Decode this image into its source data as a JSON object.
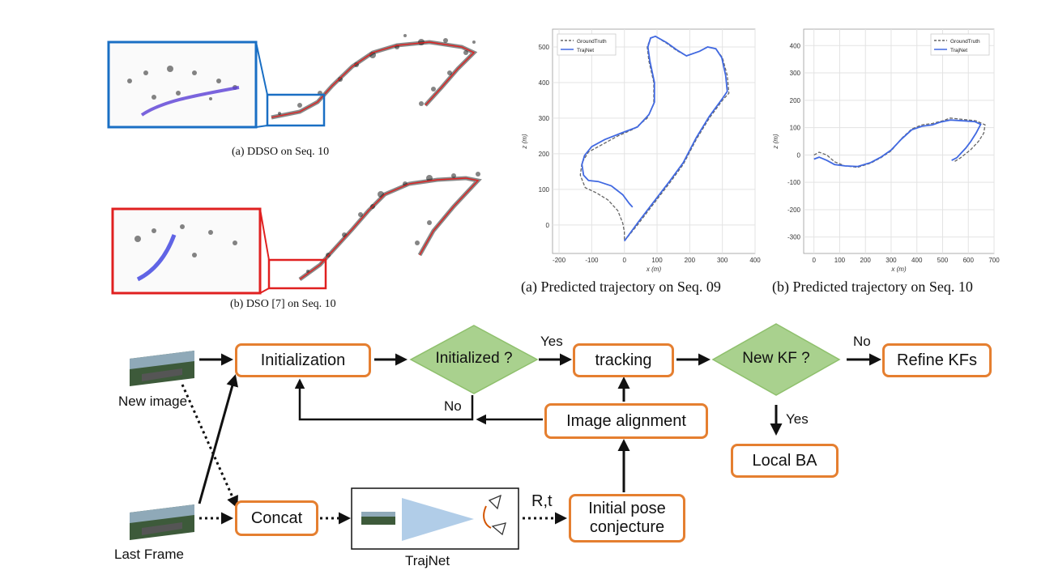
{
  "captions": {
    "ddso": "(a)  DDSO on Seq. 10",
    "dso": "(b)  DSO [7] on Seq. 10",
    "traj09": "(a)  Predicted trajectory on Seq. 09",
    "traj10": "(b)  Predicted trajectory on Seq. 10"
  },
  "chart_data": [
    {
      "type": "line",
      "xlabel": "x (m)",
      "ylabel": "z (m)",
      "xlim": [
        -220,
        400
      ],
      "ylim": [
        -80,
        550
      ],
      "xticks": [
        -200,
        -100,
        0,
        100,
        200,
        300,
        400
      ],
      "yticks": [
        0,
        100,
        200,
        300,
        400,
        500
      ],
      "grid": true,
      "legend": "top-left",
      "series": [
        {
          "name": "GroundTruth",
          "color": "#666666",
          "style": "dashed",
          "points": [
            [
              0,
              -45
            ],
            [
              40,
              0
            ],
            [
              90,
              60
            ],
            [
              140,
              120
            ],
            [
              180,
              170
            ],
            [
              220,
              240
            ],
            [
              260,
              300
            ],
            [
              300,
              350
            ],
            [
              320,
              370
            ],
            [
              315,
              420
            ],
            [
              300,
              470
            ],
            [
              280,
              495
            ],
            [
              255,
              500
            ],
            [
              230,
              488
            ],
            [
              190,
              475
            ],
            [
              160,
              490
            ],
            [
              130,
              510
            ],
            [
              95,
              530
            ],
            [
              80,
              525
            ],
            [
              70,
              500
            ],
            [
              75,
              460
            ],
            [
              90,
              400
            ],
            [
              90,
              340
            ],
            [
              70,
              300
            ],
            [
              30,
              270
            ],
            [
              -20,
              250
            ],
            [
              -70,
              225
            ],
            [
              -110,
              205
            ],
            [
              -130,
              175
            ],
            [
              -135,
              140
            ],
            [
              -120,
              105
            ],
            [
              -85,
              90
            ],
            [
              -50,
              70
            ],
            [
              -20,
              40
            ],
            [
              -5,
              5
            ],
            [
              0,
              -20
            ],
            [
              0,
              -45
            ]
          ]
        },
        {
          "name": "TrajNet",
          "color": "#4169e1",
          "style": "solid",
          "points": [
            [
              0,
              -45
            ],
            [
              40,
              5
            ],
            [
              90,
              65
            ],
            [
              140,
              125
            ],
            [
              180,
              175
            ],
            [
              220,
              245
            ],
            [
              260,
              305
            ],
            [
              300,
              355
            ],
            [
              315,
              375
            ],
            [
              310,
              420
            ],
            [
              298,
              470
            ],
            [
              280,
              495
            ],
            [
              255,
              500
            ],
            [
              230,
              488
            ],
            [
              190,
              475
            ],
            [
              160,
              492
            ],
            [
              130,
              512
            ],
            [
              95,
              530
            ],
            [
              80,
              525
            ],
            [
              72,
              500
            ],
            [
              78,
              460
            ],
            [
              92,
              400
            ],
            [
              92,
              345
            ],
            [
              75,
              310
            ],
            [
              40,
              275
            ],
            [
              -10,
              258
            ],
            [
              -60,
              240
            ],
            [
              -100,
              220
            ],
            [
              -122,
              195
            ],
            [
              -130,
              170
            ],
            [
              -125,
              140
            ],
            [
              -110,
              125
            ],
            [
              -80,
              122
            ],
            [
              -40,
              110
            ],
            [
              -5,
              85
            ],
            [
              15,
              60
            ],
            [
              25,
              50
            ]
          ]
        }
      ]
    },
    {
      "type": "line",
      "xlabel": "x (m)",
      "ylabel": "z (m)",
      "xlim": [
        -40,
        700
      ],
      "ylim": [
        -360,
        460
      ],
      "xticks": [
        0,
        100,
        200,
        300,
        400,
        500,
        600,
        700
      ],
      "yticks": [
        -300,
        -200,
        -100,
        0,
        100,
        200,
        300,
        400
      ],
      "grid": true,
      "legend": "top-right",
      "series": [
        {
          "name": "GroundTruth",
          "color": "#666666",
          "style": "dashed",
          "points": [
            [
              0,
              0
            ],
            [
              20,
              10
            ],
            [
              50,
              0
            ],
            [
              80,
              -25
            ],
            [
              120,
              -40
            ],
            [
              170,
              -45
            ],
            [
              220,
              -30
            ],
            [
              260,
              -10
            ],
            [
              300,
              15
            ],
            [
              340,
              60
            ],
            [
              380,
              95
            ],
            [
              420,
              110
            ],
            [
              460,
              115
            ],
            [
              500,
              125
            ],
            [
              530,
              135
            ],
            [
              580,
              130
            ],
            [
              630,
              125
            ],
            [
              665,
              110
            ],
            [
              660,
              80
            ],
            [
              640,
              50
            ],
            [
              610,
              20
            ],
            [
              590,
              5
            ],
            [
              570,
              -10
            ],
            [
              545,
              -25
            ]
          ]
        },
        {
          "name": "TrajNet",
          "color": "#4169e1",
          "style": "solid",
          "points": [
            [
              0,
              -15
            ],
            [
              20,
              -8
            ],
            [
              50,
              -20
            ],
            [
              80,
              -35
            ],
            [
              120,
              -40
            ],
            [
              170,
              -42
            ],
            [
              220,
              -28
            ],
            [
              260,
              -8
            ],
            [
              300,
              18
            ],
            [
              340,
              58
            ],
            [
              380,
              92
            ],
            [
              420,
              105
            ],
            [
              460,
              110
            ],
            [
              490,
              120
            ],
            [
              530,
              128
            ],
            [
              580,
              125
            ],
            [
              625,
              122
            ],
            [
              648,
              112
            ],
            [
              630,
              80
            ],
            [
              610,
              50
            ],
            [
              590,
              25
            ],
            [
              570,
              5
            ],
            [
              555,
              -10
            ],
            [
              535,
              -20
            ]
          ]
        }
      ]
    }
  ],
  "flow": {
    "new_image": "New image",
    "last_frame": "Last Frame",
    "initialization": "Initialization",
    "initialized_q": "Initialized ?",
    "tracking": "tracking",
    "new_kf_q": "New KF ?",
    "refine_kfs": "Refine KFs",
    "image_alignment": "Image alignment",
    "local_ba": "Local BA",
    "concat": "Concat",
    "initial_pose_line1": "Initial pose",
    "initial_pose_line2": "conjecture",
    "trajnet": "TrajNet",
    "yes_top": "Yes",
    "no_top": "No",
    "no_back": "No",
    "yes_down": "Yes",
    "rt": "R,t"
  },
  "colors": {
    "box_border": "#e57f30",
    "diamond_fill": "#a9d18e",
    "diamond_border": "#8fc06d",
    "highlight_blue": "#1a6fc4",
    "highlight_red": "#e02020",
    "trajnet_blue": "#4169e1"
  }
}
